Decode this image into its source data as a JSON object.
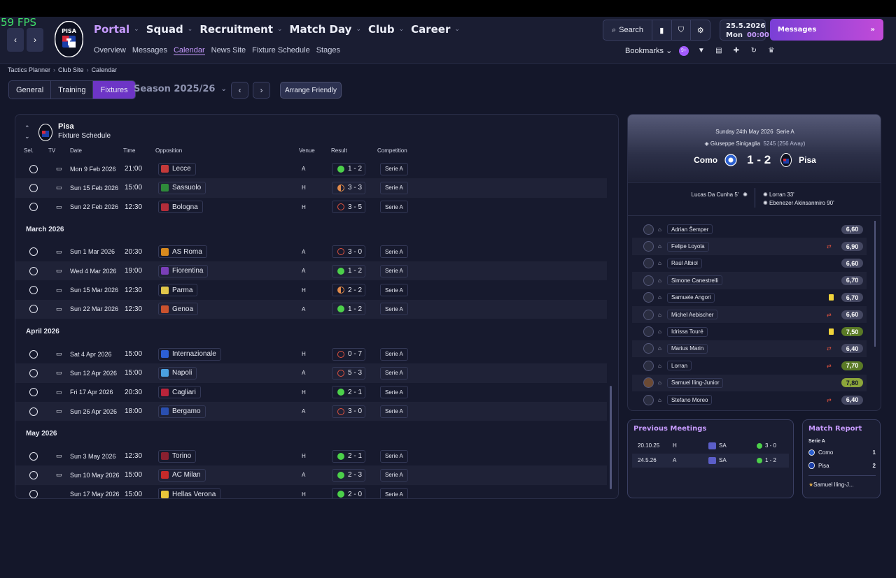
{
  "fps": "59 FPS",
  "header": {
    "club_crest_text": "PISA",
    "main_nav": [
      {
        "label": "Portal",
        "active": true
      },
      {
        "label": "Squad",
        "active": false
      },
      {
        "label": "Recruitment",
        "active": false
      },
      {
        "label": "Match Day",
        "active": false
      },
      {
        "label": "Club",
        "active": false
      },
      {
        "label": "Career",
        "active": false
      }
    ],
    "sub_nav": [
      "Overview",
      "Messages",
      "Calendar",
      "News Site",
      "Fixture Schedule",
      "Stages"
    ],
    "sub_nav_active": "Calendar",
    "search_label": "Search",
    "date": "25.5.2026",
    "day": "Mon",
    "time": "00:00",
    "messages_label": "Messages",
    "bookmarks_label": "Bookmarks",
    "bookmark_badge": "9+"
  },
  "breadcrumb": [
    "Tactics Planner",
    "Club Site",
    "Calendar"
  ],
  "tabs": [
    {
      "label": "General",
      "active": false
    },
    {
      "label": "Training",
      "active": false
    },
    {
      "label": "Fixtures",
      "active": true
    }
  ],
  "season_label": "Season 2025/26",
  "arrange_label": "Arrange Friendly",
  "schedule": {
    "team": "Pisa",
    "subtitle": "Fixture Schedule",
    "columns": [
      "Sel.",
      "TV",
      "Date",
      "Time",
      "Opposition",
      "Venue",
      "Result",
      "Competition"
    ],
    "groups": [
      {
        "month": "",
        "fixtures": [
          {
            "date": "Mon 9 Feb 2026",
            "time": "21:00",
            "opp": "Lecce",
            "venue": "A",
            "result": "1 - 2",
            "outcome": "W",
            "comp": "Serie A",
            "badge": "#c43a3a"
          },
          {
            "date": "Sun 15 Feb 2026",
            "time": "15:00",
            "opp": "Sassuolo",
            "venue": "H",
            "result": "3 - 3",
            "outcome": "D",
            "comp": "Serie A",
            "badge": "#2e8a3a"
          },
          {
            "date": "Sun 22 Feb 2026",
            "time": "12:30",
            "opp": "Bologna",
            "venue": "H",
            "result": "3 - 5",
            "outcome": "L",
            "comp": "Serie A",
            "badge": "#b32d3a"
          }
        ]
      },
      {
        "month": "March 2026",
        "fixtures": [
          {
            "date": "Sun 1 Mar 2026",
            "time": "20:30",
            "opp": "AS Roma",
            "venue": "A",
            "result": "3 - 0",
            "outcome": "L",
            "comp": "Serie A",
            "badge": "#d98a1e"
          },
          {
            "date": "Wed 4 Mar 2026",
            "time": "19:00",
            "opp": "Fiorentina",
            "venue": "A",
            "result": "1 - 2",
            "outcome": "W",
            "comp": "Serie A",
            "badge": "#7a3fb8"
          },
          {
            "date": "Sun 15 Mar 2026",
            "time": "12:30",
            "opp": "Parma",
            "venue": "H",
            "result": "2 - 2",
            "outcome": "D",
            "comp": "Serie A",
            "badge": "#e0c64a"
          },
          {
            "date": "Sun 22 Mar 2026",
            "time": "12:30",
            "opp": "Genoa",
            "venue": "A",
            "result": "1 - 2",
            "outcome": "W",
            "comp": "Serie A",
            "badge": "#c9522e"
          }
        ]
      },
      {
        "month": "April 2026",
        "fixtures": [
          {
            "date": "Sat 4 Apr 2026",
            "time": "15:00",
            "opp": "Internazionale",
            "venue": "H",
            "result": "0 - 7",
            "outcome": "L",
            "comp": "Serie A",
            "badge": "#2c5fd6"
          },
          {
            "date": "Sun 12 Apr 2026",
            "time": "15:00",
            "opp": "Napoli",
            "venue": "A",
            "result": "5 - 3",
            "outcome": "L",
            "comp": "Serie A",
            "badge": "#4aa0e0"
          },
          {
            "date": "Fri 17 Apr 2026",
            "time": "20:30",
            "opp": "Cagliari",
            "venue": "H",
            "result": "2 - 1",
            "outcome": "W",
            "comp": "Serie A",
            "badge": "#b8243a"
          },
          {
            "date": "Sun 26 Apr 2026",
            "time": "18:00",
            "opp": "Bergamo",
            "venue": "A",
            "result": "3 - 0",
            "outcome": "L",
            "comp": "Serie A",
            "badge": "#2a4fb0"
          }
        ]
      },
      {
        "month": "May 2026",
        "fixtures": [
          {
            "date": "Sun 3 May 2026",
            "time": "12:30",
            "opp": "Torino",
            "venue": "H",
            "result": "2 - 1",
            "outcome": "W",
            "comp": "Serie A",
            "badge": "#8a2030"
          },
          {
            "date": "Sun 10 May 2026",
            "time": "15:00",
            "opp": "AC Milan",
            "venue": "A",
            "result": "2 - 3",
            "outcome": "W",
            "comp": "Serie A",
            "badge": "#c42a2a"
          },
          {
            "date": "Sun 17 May 2026",
            "time": "15:00",
            "opp": "Hellas Verona",
            "venue": "H",
            "result": "2 - 0",
            "outcome": "W",
            "comp": "Serie A",
            "badge": "#e8c53a"
          }
        ]
      }
    ]
  },
  "match": {
    "date_line": "Sunday 24th May 2026",
    "competition": "Serie A",
    "stadium": "Giuseppe Sinigaglia",
    "attendance": "5245 (256 Away)",
    "home": "Como",
    "away": "Pisa",
    "score": "1 - 2",
    "home_scorers": [
      "Lucas Da Cunha 5'"
    ],
    "away_scorers": [
      "Lorran 33'",
      "Ebenezer Akinsanmiro 90'"
    ],
    "players": [
      {
        "name": "Adrian Šemper",
        "rating": "6,60",
        "event": "",
        "tier": "normal",
        "photo": false
      },
      {
        "name": "Felipe Loyola",
        "rating": "6,90",
        "event": "sub",
        "tier": "normal",
        "photo": false
      },
      {
        "name": "Raúl Albiol",
        "rating": "6,60",
        "event": "",
        "tier": "normal",
        "photo": false
      },
      {
        "name": "Simone Canestrelli",
        "rating": "6,70",
        "event": "",
        "tier": "normal",
        "photo": false
      },
      {
        "name": "Samuele Angori",
        "rating": "6,70",
        "event": "card",
        "tier": "normal",
        "photo": false
      },
      {
        "name": "Michel Aebischer",
        "rating": "6,60",
        "event": "sub",
        "tier": "normal",
        "photo": false
      },
      {
        "name": "Idrissa Touré",
        "rating": "7,50",
        "event": "card",
        "tier": "good",
        "photo": false
      },
      {
        "name": "Marius Marin",
        "rating": "6,40",
        "event": "sub",
        "tier": "normal",
        "photo": false
      },
      {
        "name": "Lorran",
        "rating": "7,70",
        "event": "sub",
        "tier": "good",
        "photo": false
      },
      {
        "name": "Samuel Iling-Junior",
        "rating": "7,80",
        "event": "",
        "tier": "great",
        "photo": true
      },
      {
        "name": "Stefano Moreo",
        "rating": "6,40",
        "event": "sub",
        "tier": "normal",
        "photo": false
      }
    ]
  },
  "previous_meetings": {
    "title": "Previous Meetings",
    "rows": [
      {
        "date": "20.10.25",
        "venue": "H",
        "comp": "SA",
        "result": "3 - 0"
      },
      {
        "date": "24.5.26",
        "venue": "A",
        "comp": "SA",
        "result": "1 - 2"
      }
    ]
  },
  "match_report": {
    "title": "Match Report",
    "competition": "Serie A",
    "home": "Como",
    "home_score": "1",
    "away": "Pisa",
    "away_score": "2",
    "star_player": "Samuel Iling-J..."
  },
  "colors": {
    "accent": "#c79bff",
    "active_tab": "#6d35c6",
    "win": "#4cd04a",
    "loss": "#e0523e",
    "draw": "#e08a4a",
    "background": "#14172a"
  }
}
